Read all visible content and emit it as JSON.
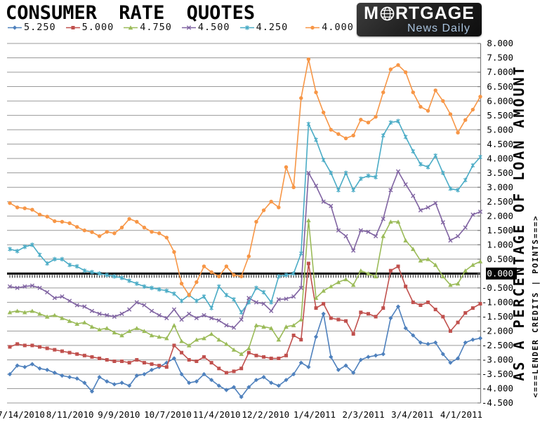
{
  "header": {
    "title": "CONSUMER RATE QUOTES"
  },
  "logo": {
    "title": "MORTGAGE",
    "subtitle": "News Daily",
    "globe_icon": "globe-icon",
    "bg_color": "#1d1d1d",
    "subtitle_color": "#a9c3de"
  },
  "y_axis": {
    "highlighted_label": "0.000",
    "label_big": "AS A PERCENTAGE OF LOAN AMOUNT",
    "label_small": "<===LENDER CREDITS | POINTS===>"
  },
  "chart_data": {
    "type": "line",
    "title": "CONSUMER RATE QUOTES",
    "ylabel": "AS A PERCENTAGE OF LOAN AMOUNT",
    "ylabel_secondary": "<===LENDER CREDITS | POINTS===>",
    "ylim": [
      -4.5,
      8.0
    ],
    "ytick_step": 0.5,
    "grid": true,
    "legend_position": "top-left",
    "zero_line_highlighted": true,
    "x_tick_labels": [
      "7/14/2010",
      "8/11/2010",
      "9/9/2010",
      "10/7/2010",
      "11/4/2010",
      "12/2/2010",
      "1/4/2011",
      "2/3/2011",
      "3/4/2011",
      "4/1/2011"
    ],
    "x_unit": "trading days since 7/14/2010; series sampled every 3 days",
    "days": [
      0,
      3,
      6,
      9,
      12,
      15,
      18,
      21,
      24,
      27,
      30,
      33,
      36,
      39,
      42,
      45,
      48,
      51,
      54,
      57,
      60,
      63,
      66,
      69,
      72,
      75,
      78,
      81,
      84,
      87,
      90,
      93,
      96,
      99,
      102,
      105,
      108,
      111,
      114,
      117,
      120,
      123,
      126,
      129,
      132,
      135,
      138,
      141,
      144,
      147,
      150,
      153,
      156,
      159,
      162,
      165,
      168,
      171,
      174,
      177,
      180,
      183,
      186,
      189
    ],
    "series": [
      {
        "name": "5.250",
        "color": "#4F81BD",
        "marker": "diamond",
        "values": [
          -3.5,
          -3.2,
          -3.25,
          -3.15,
          -3.3,
          -3.35,
          -3.45,
          -3.55,
          -3.6,
          -3.65,
          -3.8,
          -4.1,
          -3.6,
          -3.75,
          -3.85,
          -3.8,
          -3.9,
          -3.55,
          -3.5,
          -3.35,
          -3.25,
          -3.1,
          -2.95,
          -3.5,
          -3.8,
          -3.75,
          -3.5,
          -3.7,
          -3.9,
          -4.05,
          -3.95,
          -4.29,
          -3.95,
          -3.7,
          -3.6,
          -3.8,
          -3.9,
          -3.7,
          -3.5,
          -3.1,
          -3.25,
          -2.2,
          -1.4,
          -2.9,
          -3.35,
          -3.2,
          -3.45,
          -3.0,
          -2.9,
          -2.85,
          -2.8,
          -1.55,
          -1.15,
          -1.9,
          -2.15,
          -2.4,
          -2.45,
          -2.4,
          -2.8,
          -3.1,
          -2.95,
          -2.4,
          -2.3,
          -2.25
        ]
      },
      {
        "name": "5.000",
        "color": "#C0504D",
        "marker": "square",
        "values": [
          -2.55,
          -2.45,
          -2.5,
          -2.5,
          -2.55,
          -2.6,
          -2.65,
          -2.7,
          -2.75,
          -2.8,
          -2.85,
          -2.9,
          -2.95,
          -3.0,
          -3.05,
          -3.05,
          -3.1,
          -3.0,
          -3.1,
          -3.15,
          -3.2,
          -3.25,
          -2.5,
          -2.75,
          -3.0,
          -3.05,
          -2.9,
          -3.1,
          -3.3,
          -3.45,
          -3.4,
          -3.3,
          -2.75,
          -2.85,
          -2.9,
          -2.95,
          -2.95,
          -2.85,
          -2.15,
          -2.3,
          0.35,
          -1.2,
          -1.05,
          -1.55,
          -1.6,
          -1.65,
          -2.1,
          -1.35,
          -1.4,
          -1.5,
          -1.2,
          0.1,
          0.25,
          -0.45,
          -1.0,
          -1.1,
          -1.0,
          -1.25,
          -1.5,
          -2.0,
          -1.7,
          -1.37,
          -1.2,
          -1.05
        ]
      },
      {
        "name": "4.750",
        "color": "#9BBB59",
        "marker": "triangle",
        "values": [
          -1.35,
          -1.3,
          -1.35,
          -1.3,
          -1.4,
          -1.5,
          -1.45,
          -1.55,
          -1.65,
          -1.75,
          -1.7,
          -1.85,
          -1.95,
          -1.9,
          -2.05,
          -2.15,
          -2.0,
          -1.9,
          -2.0,
          -2.15,
          -2.2,
          -2.25,
          -1.8,
          -2.35,
          -2.5,
          -2.3,
          -2.25,
          -2.1,
          -2.3,
          -2.45,
          -2.65,
          -2.8,
          -2.6,
          -1.8,
          -1.85,
          -1.9,
          -2.3,
          -1.85,
          -1.8,
          -1.6,
          1.85,
          -0.85,
          -0.6,
          -0.45,
          -0.3,
          -0.2,
          -0.4,
          0.1,
          0.0,
          -0.1,
          1.3,
          1.8,
          1.8,
          1.15,
          0.85,
          0.45,
          0.5,
          0.3,
          -0.1,
          -0.4,
          -0.35,
          0.1,
          0.3,
          0.42
        ]
      },
      {
        "name": "4.500",
        "color": "#8064A2",
        "marker": "x",
        "values": [
          -0.45,
          -0.5,
          -0.45,
          -0.42,
          -0.5,
          -0.65,
          -0.85,
          -0.8,
          -0.95,
          -1.1,
          -1.15,
          -1.3,
          -1.4,
          -1.45,
          -1.5,
          -1.4,
          -1.25,
          -1.0,
          -1.1,
          -1.3,
          -1.45,
          -1.55,
          -1.25,
          -1.6,
          -1.4,
          -1.55,
          -1.45,
          -1.55,
          -1.63,
          -1.8,
          -1.88,
          -1.6,
          -0.85,
          -1.0,
          -1.05,
          -1.3,
          -0.9,
          -0.88,
          -0.8,
          -0.5,
          3.5,
          3.05,
          2.5,
          2.35,
          1.5,
          1.3,
          0.8,
          1.5,
          1.45,
          1.3,
          1.9,
          2.9,
          3.55,
          3.1,
          2.7,
          2.2,
          2.3,
          2.45,
          1.78,
          1.15,
          1.3,
          1.6,
          2.05,
          2.15
        ]
      },
      {
        "name": "4.250",
        "color": "#4BACC6",
        "marker": "star",
        "values": [
          0.85,
          0.78,
          0.93,
          1.0,
          0.65,
          0.35,
          0.5,
          0.5,
          0.3,
          0.25,
          0.1,
          0.05,
          0.0,
          -0.05,
          -0.1,
          -0.15,
          -0.25,
          -0.35,
          -0.45,
          -0.5,
          -0.55,
          -0.6,
          -0.7,
          -0.95,
          -0.75,
          -0.95,
          -0.8,
          -1.2,
          -0.45,
          -0.75,
          -0.9,
          -1.35,
          -1.0,
          -0.5,
          -0.65,
          -1.0,
          -0.1,
          -0.05,
          0.0,
          0.7,
          5.2,
          4.65,
          3.95,
          3.5,
          2.9,
          3.5,
          2.9,
          3.3,
          3.4,
          3.35,
          4.8,
          5.25,
          5.3,
          4.75,
          4.25,
          3.8,
          3.7,
          4.1,
          3.5,
          2.95,
          2.9,
          3.25,
          3.76,
          4.05
        ]
      },
      {
        "name": "4.000",
        "color": "#F79646",
        "marker": "circle",
        "values": [
          2.45,
          2.3,
          2.27,
          2.22,
          2.05,
          1.98,
          1.82,
          1.8,
          1.75,
          1.62,
          1.5,
          1.44,
          1.3,
          1.45,
          1.4,
          1.6,
          1.9,
          1.8,
          1.6,
          1.45,
          1.4,
          1.25,
          0.75,
          -0.35,
          -0.75,
          -0.3,
          0.25,
          0.05,
          -0.1,
          0.25,
          -0.05,
          -0.1,
          0.6,
          1.8,
          2.2,
          2.5,
          2.3,
          3.7,
          3.0,
          6.1,
          7.45,
          6.3,
          5.6,
          5.0,
          4.85,
          4.7,
          4.8,
          5.35,
          5.25,
          5.45,
          6.3,
          7.1,
          7.25,
          7.0,
          6.3,
          5.8,
          5.66,
          6.37,
          6.0,
          5.54,
          4.9,
          5.34,
          5.7,
          6.15
        ]
      }
    ]
  }
}
